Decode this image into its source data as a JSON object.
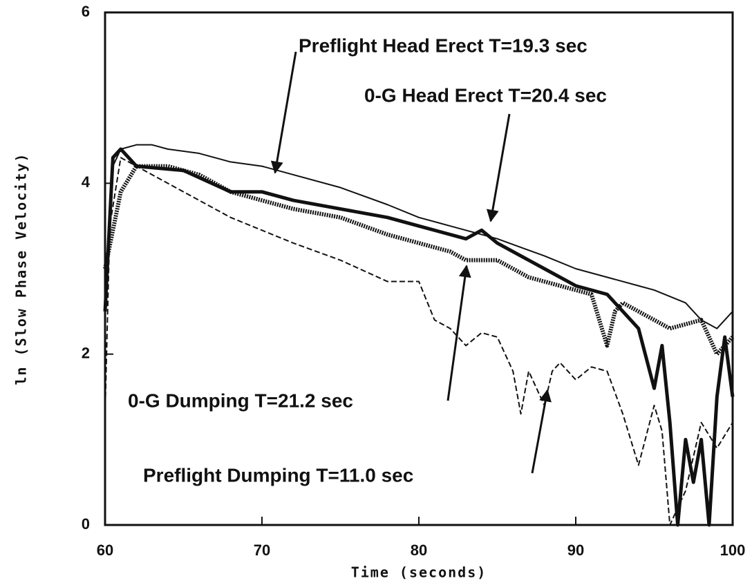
{
  "chart_data": {
    "type": "line",
    "xlabel": "Time (seconds)",
    "ylabel": "ln (Slow Phase Velocity)",
    "xlim": [
      60,
      100
    ],
    "xticks": [
      60,
      70,
      80,
      90,
      100
    ],
    "ylim": [
      0,
      6
    ],
    "yticks": [
      0,
      2,
      4,
      6
    ],
    "grid": false,
    "series": [
      {
        "name": "Preflight Head Erect  T=19.3 sec",
        "color": "#111111",
        "line_style": "solid",
        "x": [
          60,
          60.5,
          61,
          62,
          63,
          64,
          66,
          68,
          70,
          72,
          75,
          78,
          80,
          82,
          85,
          88,
          90,
          92,
          94,
          95,
          97,
          98,
          99,
          100
        ],
        "values": [
          2.5,
          4.2,
          4.4,
          4.45,
          4.45,
          4.4,
          4.35,
          4.25,
          4.2,
          4.1,
          3.95,
          3.75,
          3.6,
          3.5,
          3.35,
          3.15,
          3.0,
          2.9,
          2.8,
          2.75,
          2.6,
          2.4,
          2.3,
          2.5
        ]
      },
      {
        "name": "0-G Head Erect T=20.4 sec",
        "color": "#111111",
        "line_style": "thick",
        "x": [
          60,
          60.5,
          61,
          62,
          65,
          68,
          70,
          72,
          75,
          78,
          80,
          83,
          84,
          85,
          88,
          90,
          92,
          93,
          94,
          95,
          95.5,
          96,
          96.5,
          97,
          97.5,
          98,
          98.5,
          99,
          99.5,
          100
        ],
        "values": [
          2.5,
          4.3,
          4.4,
          4.2,
          4.15,
          3.9,
          3.9,
          3.8,
          3.7,
          3.6,
          3.5,
          3.35,
          3.45,
          3.3,
          3.0,
          2.8,
          2.7,
          2.5,
          2.3,
          1.6,
          2.1,
          1.2,
          0,
          1.0,
          0.5,
          1.0,
          0,
          1.5,
          2.2,
          1.5
        ]
      },
      {
        "name": "0-G Dumping T=21.2 sec",
        "color": "#111111",
        "line_style": "dotted",
        "x": [
          60,
          61,
          62,
          64,
          66,
          68,
          70,
          72,
          75,
          78,
          80,
          82,
          83,
          85,
          87,
          90,
          91,
          92,
          92.5,
          93,
          95,
          96,
          98,
          99,
          100
        ],
        "values": [
          3.0,
          3.9,
          4.2,
          4.2,
          4.1,
          3.9,
          3.8,
          3.7,
          3.6,
          3.4,
          3.3,
          3.2,
          3.1,
          3.1,
          2.9,
          2.75,
          2.7,
          2.1,
          2.5,
          2.6,
          2.4,
          2.3,
          2.4,
          2.0,
          2.2
        ]
      },
      {
        "name": "Preflight Dumping T=11.0 sec",
        "color": "#111111",
        "line_style": "dashed",
        "x": [
          60,
          60.3,
          61,
          62,
          65,
          68,
          70,
          72,
          75,
          78,
          80,
          81,
          82,
          83,
          84,
          85,
          86,
          86.5,
          87,
          88,
          88.5,
          89,
          90,
          91,
          92,
          93,
          93.5,
          94,
          95,
          95.5,
          96,
          97,
          98,
          99,
          100
        ],
        "values": [
          1.3,
          3.5,
          4.3,
          4.2,
          3.9,
          3.6,
          3.45,
          3.3,
          3.1,
          2.85,
          2.85,
          2.4,
          2.3,
          2.1,
          2.25,
          2.2,
          1.8,
          1.3,
          1.8,
          1.4,
          1.8,
          1.9,
          1.7,
          1.85,
          1.8,
          1.3,
          1.0,
          0.7,
          1.4,
          1.1,
          0,
          0.4,
          1.2,
          0.9,
          1.2
        ]
      }
    ]
  }
}
